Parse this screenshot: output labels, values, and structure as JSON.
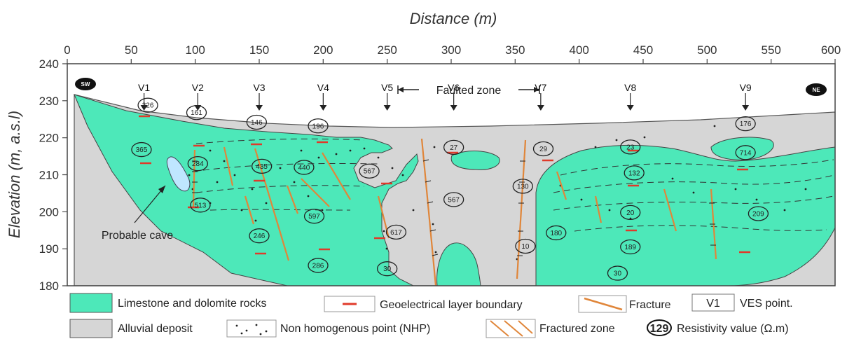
{
  "axes": {
    "x_title": "Distance (m)",
    "y_title": "Elevation (m, a.s.l)",
    "x_ticks": [
      "0",
      "50",
      "100",
      "150",
      "200",
      "250",
      "300",
      "350",
      "400",
      "450",
      "500",
      "550",
      "600"
    ],
    "y_ticks": [
      "240",
      "230",
      "220",
      "210",
      "200",
      "190",
      "180"
    ]
  },
  "end_labels": {
    "left": "SW",
    "right": "NE"
  },
  "faulted_zone": "Faulted zone",
  "cave_label": "Probable cave",
  "ves_points": [
    {
      "label": "V1",
      "x": 60
    },
    {
      "label": "V2",
      "x": 102
    },
    {
      "label": "V3",
      "x": 150
    },
    {
      "label": "V4",
      "x": 200
    },
    {
      "label": "V5",
      "x": 250
    },
    {
      "label": "V6",
      "x": 302
    },
    {
      "label": "V7",
      "x": 370
    },
    {
      "label": "V8",
      "x": 440
    },
    {
      "label": "V9",
      "x": 530
    }
  ],
  "resistivity_values": [
    {
      "text": "326",
      "x": 63,
      "y": 228.8
    },
    {
      "text": "161",
      "x": 101,
      "y": 226.8
    },
    {
      "text": "146",
      "x": 148,
      "y": 224.2
    },
    {
      "text": "196",
      "x": 196,
      "y": 223.2
    },
    {
      "text": "365",
      "x": 58,
      "y": 216.8
    },
    {
      "text": "284",
      "x": 102,
      "y": 213.0
    },
    {
      "text": "435",
      "x": 152,
      "y": 212.3
    },
    {
      "text": "440",
      "x": 185,
      "y": 212.0
    },
    {
      "text": "567",
      "x": 236,
      "y": 211.0
    },
    {
      "text": "27",
      "x": 302,
      "y": 217.4
    },
    {
      "text": "29",
      "x": 372,
      "y": 217.0
    },
    {
      "text": "23",
      "x": 440,
      "y": 217.5
    },
    {
      "text": "176",
      "x": 530,
      "y": 223.8
    },
    {
      "text": "714",
      "x": 530,
      "y": 216.0
    },
    {
      "text": "132",
      "x": 443,
      "y": 210.5
    },
    {
      "text": "567",
      "x": 302,
      "y": 203.3
    },
    {
      "text": "130",
      "x": 356,
      "y": 206.9
    },
    {
      "text": "513",
      "x": 104,
      "y": 201.8
    },
    {
      "text": "597",
      "x": 193,
      "y": 198.8
    },
    {
      "text": "20",
      "x": 440,
      "y": 199.8
    },
    {
      "text": "209",
      "x": 540,
      "y": 199.5
    },
    {
      "text": "246",
      "x": 150,
      "y": 193.5
    },
    {
      "text": "617",
      "x": 257,
      "y": 194.5
    },
    {
      "text": "180",
      "x": 382,
      "y": 194.3
    },
    {
      "text": "189",
      "x": 440,
      "y": 190.5
    },
    {
      "text": "10",
      "x": 358,
      "y": 190.7
    },
    {
      "text": "286",
      "x": 196,
      "y": 185.5
    },
    {
      "text": "30",
      "x": 250,
      "y": 184.6
    },
    {
      "text": "30",
      "x": 430,
      "y": 183.4
    }
  ],
  "legend": {
    "limestone": "Limestone and dolomite rocks",
    "boundary": "Geoelectrical layer boundary",
    "fracture": "Fracture",
    "ves_sample": "V1",
    "ves_text": "VES point.",
    "alluvial": "Alluvial deposit",
    "nhp": "Non homogenous point (NHP)",
    "fractured_zone": "Fractured zone",
    "res_sample": "129",
    "res_text": "Resistivity value (Ω.m)"
  },
  "colors": {
    "limestone": "#4de8b9",
    "alluvial": "#d6d6d6",
    "fracture": "#e0863a",
    "boundary": "#e03a2a"
  }
}
